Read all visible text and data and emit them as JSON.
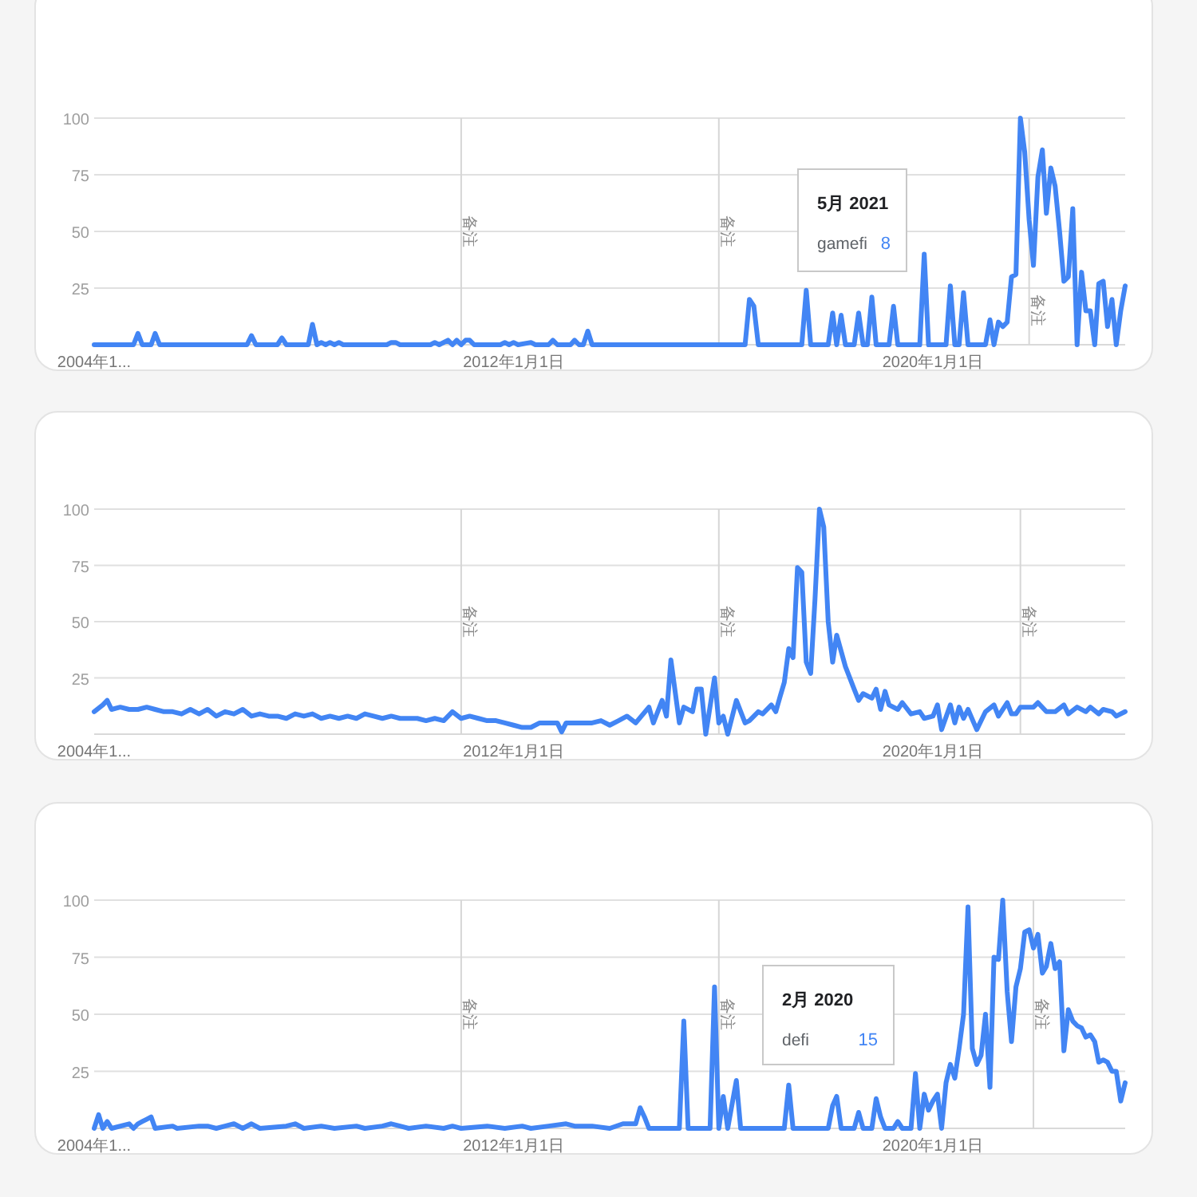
{
  "chart_data": [
    {
      "type": "line",
      "xlim": [
        "2004-01",
        "2023-09"
      ],
      "xticks": [
        {
          "value": "2004-01",
          "label": "2004年1..."
        },
        {
          "value": "2012-01-01",
          "label": "2012年1月1日"
        },
        {
          "value": "2020-01-01",
          "label": "2020年1月1日"
        }
      ],
      "ylim": [
        0,
        100
      ],
      "yticks": [
        25,
        50,
        75,
        100
      ],
      "grid": "y",
      "ref_lines": [
        {
          "axis": "x",
          "value": "2011-01",
          "label": "备注"
        },
        {
          "axis": "x",
          "value": "2015-12",
          "label": "备注"
        },
        {
          "axis": "x",
          "value": "2021-11",
          "label": "备注"
        }
      ],
      "annotations": [
        "5月 2021",
        "8"
      ],
      "series": [
        {
          "name": "gamefi",
          "color": "#4285f4",
          "x": [
            "2004-01",
            "2004-10",
            "2004-11",
            "2004-12",
            "2005-02",
            "2005-03",
            "2005-04",
            "2006-12",
            "2007-01",
            "2007-02",
            "2007-07",
            "2007-08",
            "2007-09",
            "2008-02",
            "2008-03",
            "2008-04",
            "2008-05",
            "2008-06",
            "2008-07",
            "2008-08",
            "2008-09",
            "2008-10",
            "2009-08",
            "2009-09",
            "2009-10",
            "2009-11",
            "2010-06",
            "2010-07",
            "2010-08",
            "2010-10",
            "2010-11",
            "2010-12",
            "2011-01",
            "2011-02",
            "2011-03",
            "2011-04",
            "2011-10",
            "2011-11",
            "2011-12",
            "2012-01",
            "2012-02",
            "2012-05",
            "2012-06",
            "2012-09",
            "2012-10",
            "2012-11",
            "2013-02",
            "2013-03",
            "2013-04",
            "2013-05",
            "2013-06",
            "2013-07",
            "2016-06",
            "2016-07",
            "2016-08",
            "2016-09",
            "2017-07",
            "2017-08",
            "2017-09",
            "2018-01",
            "2018-02",
            "2018-03",
            "2018-04",
            "2018-05",
            "2018-07",
            "2018-08",
            "2018-09",
            "2018-10",
            "2018-11",
            "2018-12",
            "2019-03",
            "2019-04",
            "2019-05",
            "2019-10",
            "2019-11",
            "2019-12",
            "2020-04",
            "2020-05",
            "2020-06",
            "2020-07",
            "2020-08",
            "2020-09",
            "2021-01",
            "2021-02",
            "2021-03",
            "2021-04",
            "2021-05",
            "2021-06",
            "2021-07",
            "2021-08",
            "2021-09",
            "2021-10",
            "2021-11",
            "2021-12",
            "2022-01",
            "2022-02",
            "2022-03",
            "2022-04",
            "2022-05",
            "2022-06",
            "2022-07",
            "2022-08",
            "2022-09",
            "2022-10",
            "2022-11",
            "2022-12",
            "2023-01",
            "2023-02",
            "2023-03",
            "2023-04",
            "2023-05",
            "2023-06",
            "2023-07",
            "2023-08",
            "2023-09"
          ],
          "values": [
            0,
            0,
            5,
            0,
            0,
            5,
            0,
            0,
            4,
            0,
            0,
            3,
            0,
            0,
            9,
            0,
            1,
            0,
            1,
            0,
            1,
            0,
            0,
            1,
            1,
            0,
            0,
            1,
            0,
            2,
            0,
            2,
            0,
            2,
            2,
            0,
            0,
            1,
            0,
            1,
            0,
            1,
            0,
            0,
            2,
            0,
            0,
            2,
            0,
            0,
            6,
            0,
            0,
            20,
            17,
            0,
            0,
            24,
            0,
            0,
            14,
            0,
            13,
            0,
            0,
            14,
            0,
            0,
            21,
            0,
            0,
            17,
            0,
            0,
            40,
            0,
            0,
            26,
            0,
            0,
            23,
            0,
            0,
            11,
            0,
            10,
            8,
            10,
            30,
            31,
            100,
            85,
            55,
            35,
            74,
            86,
            58,
            78,
            70,
            50,
            28,
            30,
            60,
            0,
            32,
            15,
            15,
            0,
            27,
            28,
            8,
            20,
            0,
            15,
            26
          ]
        }
      ]
    },
    {
      "type": "line",
      "xlim": [
        "2004-01",
        "2023-09"
      ],
      "xticks": [
        {
          "value": "2004-01",
          "label": "2004年1..."
        },
        {
          "value": "2012-01-01",
          "label": "2012年1月1日"
        },
        {
          "value": "2020-01-01",
          "label": "2020年1月1日"
        }
      ],
      "ylim": [
        0,
        100
      ],
      "yticks": [
        25,
        50,
        75,
        100
      ],
      "grid": "y",
      "ref_lines": [
        {
          "axis": "x",
          "value": "2011-01",
          "label": "备注"
        },
        {
          "axis": "x",
          "value": "2015-12",
          "label": "备注"
        },
        {
          "axis": "x",
          "value": "2021-09",
          "label": "备注"
        }
      ],
      "series": [
        {
          "color": "#4285f4",
          "x": [
            "2004-01",
            "2004-03",
            "2004-04",
            "2004-05",
            "2004-07",
            "2004-09",
            "2004-11",
            "2005-01",
            "2005-03",
            "2005-05",
            "2005-07",
            "2005-09",
            "2005-11",
            "2006-01",
            "2006-03",
            "2006-05",
            "2006-07",
            "2006-09",
            "2006-11",
            "2007-01",
            "2007-03",
            "2007-05",
            "2007-07",
            "2007-09",
            "2007-11",
            "2008-01",
            "2008-03",
            "2008-05",
            "2008-07",
            "2008-09",
            "2008-11",
            "2009-01",
            "2009-03",
            "2009-05",
            "2009-07",
            "2009-09",
            "2009-11",
            "2010-01",
            "2010-03",
            "2010-05",
            "2010-07",
            "2010-09",
            "2010-11",
            "2011-01",
            "2011-03",
            "2011-05",
            "2011-07",
            "2011-09",
            "2011-11",
            "2012-01",
            "2012-03",
            "2012-05",
            "2012-07",
            "2012-09",
            "2012-11",
            "2012-12",
            "2013-01",
            "2013-03",
            "2013-05",
            "2013-07",
            "2013-09",
            "2013-11",
            "2014-01",
            "2014-03",
            "2014-05",
            "2014-08",
            "2014-09",
            "2014-11",
            "2014-12",
            "2015-01",
            "2015-03",
            "2015-04",
            "2015-06",
            "2015-07",
            "2015-08",
            "2015-09",
            "2015-11",
            "2015-12",
            "2016-01",
            "2016-02",
            "2016-04",
            "2016-06",
            "2016-07",
            "2016-09",
            "2016-10",
            "2016-12",
            "2017-01",
            "2017-02",
            "2017-03",
            "2017-04",
            "2017-05",
            "2017-06",
            "2017-07",
            "2017-08",
            "2017-09",
            "2017-10",
            "2017-11",
            "2017-12",
            "2018-01",
            "2018-02",
            "2018-03",
            "2018-05",
            "2018-07",
            "2018-08",
            "2018-09",
            "2018-11",
            "2018-12",
            "2019-01",
            "2019-02",
            "2019-03",
            "2019-05",
            "2019-06",
            "2019-08",
            "2019-10",
            "2019-11",
            "2020-01",
            "2020-02",
            "2020-03",
            "2020-05",
            "2020-06",
            "2020-07",
            "2020-08",
            "2020-09",
            "2020-11",
            "2021-01",
            "2021-03",
            "2021-04",
            "2021-06",
            "2021-07",
            "2021-08",
            "2021-09",
            "2021-12",
            "2022-01",
            "2022-03",
            "2022-05",
            "2022-07",
            "2022-08",
            "2022-10",
            "2022-12",
            "2023-01",
            "2023-03",
            "2023-04",
            "2023-06",
            "2023-07",
            "2023-09"
          ],
          "values": [
            10,
            13,
            15,
            11,
            12,
            11,
            11,
            12,
            11,
            10,
            10,
            9,
            11,
            9,
            11,
            8,
            10,
            9,
            11,
            8,
            9,
            8,
            8,
            7,
            9,
            8,
            9,
            7,
            8,
            7,
            8,
            7,
            9,
            8,
            7,
            8,
            7,
            7,
            7,
            6,
            7,
            6,
            10,
            7,
            8,
            7,
            6,
            6,
            5,
            4,
            3,
            3,
            5,
            5,
            5,
            1,
            5,
            5,
            5,
            5,
            6,
            4,
            6,
            8,
            5,
            12,
            5,
            15,
            8,
            33,
            5,
            12,
            10,
            20,
            20,
            0,
            25,
            5,
            8,
            0,
            15,
            5,
            6,
            10,
            9,
            13,
            10,
            17,
            23,
            38,
            34,
            74,
            72,
            32,
            27,
            60,
            100,
            92,
            50,
            32,
            44,
            30,
            20,
            15,
            18,
            16,
            20,
            11,
            19,
            13,
            11,
            14,
            9,
            10,
            7,
            8,
            13,
            2,
            13,
            5,
            12,
            7,
            11,
            2,
            10,
            13,
            8,
            14,
            9,
            9,
            12,
            12,
            14,
            10,
            10,
            13,
            9,
            12,
            10,
            12,
            9,
            11,
            10,
            8,
            10
          ]
        }
      ]
    },
    {
      "type": "line",
      "xlim": [
        "2004-01",
        "2023-09"
      ],
      "xticks": [
        {
          "value": "2004-01",
          "label": "2004年1..."
        },
        {
          "value": "2012-01-01",
          "label": "2012年1月1日"
        },
        {
          "value": "2020-01-01",
          "label": "2020年1月1日"
        }
      ],
      "ylim": [
        0,
        100
      ],
      "yticks": [
        25,
        50,
        75,
        100
      ],
      "grid": "y",
      "ref_lines": [
        {
          "axis": "x",
          "value": "2011-01",
          "label": "备注"
        },
        {
          "axis": "x",
          "value": "2015-12",
          "label": "备注"
        },
        {
          "axis": "x",
          "value": "2021-12",
          "label": "备注"
        }
      ],
      "annotations": [
        "2月 2020",
        "15"
      ],
      "series": [
        {
          "name": "defi",
          "color": "#4285f4",
          "x": [
            "2004-01",
            "2004-02",
            "2004-03",
            "2004-04",
            "2004-05",
            "2004-09",
            "2004-10",
            "2004-11",
            "2004-12",
            "2005-01",
            "2005-02",
            "2005-03",
            "2005-07",
            "2005-08",
            "2006-01",
            "2006-03",
            "2006-05",
            "2006-07",
            "2006-09",
            "2006-11",
            "2007-01",
            "2007-03",
            "2007-09",
            "2007-11",
            "2008-01",
            "2008-05",
            "2008-08",
            "2009-01",
            "2009-03",
            "2009-07",
            "2009-09",
            "2009-11",
            "2010-01",
            "2010-05",
            "2010-09",
            "2010-11",
            "2011-01",
            "2011-07",
            "2011-11",
            "2012-03",
            "2012-05",
            "2012-09",
            "2013-01",
            "2013-03",
            "2013-07",
            "2013-11",
            "2014-02",
            "2014-05",
            "2014-06",
            "2014-07",
            "2014-08",
            "2015-03",
            "2015-04",
            "2015-05",
            "2015-10",
            "2015-11",
            "2015-12",
            "2016-01",
            "2016-02",
            "2016-04",
            "2016-05",
            "2017-03",
            "2017-04",
            "2017-05",
            "2018-01",
            "2018-02",
            "2018-03",
            "2018-04",
            "2018-07",
            "2018-08",
            "2018-09",
            "2018-11",
            "2018-12",
            "2019-01",
            "2019-02",
            "2019-04",
            "2019-05",
            "2019-06",
            "2019-08",
            "2019-09",
            "2019-10",
            "2019-11",
            "2019-12",
            "2020-01",
            "2020-02",
            "2020-03",
            "2020-04",
            "2020-05",
            "2020-06",
            "2020-07",
            "2020-08",
            "2020-09",
            "2020-10",
            "2020-11",
            "2020-12",
            "2021-01",
            "2021-02",
            "2021-03",
            "2021-04",
            "2021-05",
            "2021-06",
            "2021-07",
            "2021-08",
            "2021-09",
            "2021-10",
            "2021-11",
            "2021-12",
            "2022-01",
            "2022-02",
            "2022-03",
            "2022-04",
            "2022-05",
            "2022-06",
            "2022-07",
            "2022-08",
            "2022-09",
            "2022-10",
            "2022-11",
            "2022-12",
            "2023-01",
            "2023-02",
            "2023-03",
            "2023-04",
            "2023-05",
            "2023-06",
            "2023-07",
            "2023-08",
            "2023-09"
          ],
          "values": [
            0,
            6,
            0,
            3,
            0,
            2,
            0,
            2,
            3,
            4,
            5,
            0,
            1,
            0,
            1,
            1,
            0,
            1,
            2,
            0,
            2,
            0,
            1,
            2,
            0,
            1,
            0,
            1,
            0,
            1,
            2,
            1,
            0,
            1,
            0,
            1,
            0,
            1,
            0,
            1,
            0,
            1,
            2,
            1,
            1,
            0,
            2,
            2,
            9,
            5,
            0,
            0,
            47,
            0,
            0,
            62,
            0,
            14,
            0,
            21,
            0,
            0,
            19,
            0,
            0,
            10,
            14,
            0,
            0,
            7,
            0,
            0,
            13,
            5,
            0,
            0,
            3,
            0,
            0,
            24,
            0,
            15,
            8,
            12,
            15,
            0,
            20,
            28,
            22,
            35,
            50,
            97,
            35,
            28,
            32,
            50,
            18,
            75,
            74,
            100,
            60,
            38,
            62,
            70,
            86,
            87,
            79,
            85,
            68,
            71,
            81,
            70,
            73,
            34,
            52,
            47,
            45,
            44,
            40,
            41,
            38,
            29,
            30,
            29,
            25,
            25,
            12,
            20
          ]
        }
      ]
    }
  ]
}
